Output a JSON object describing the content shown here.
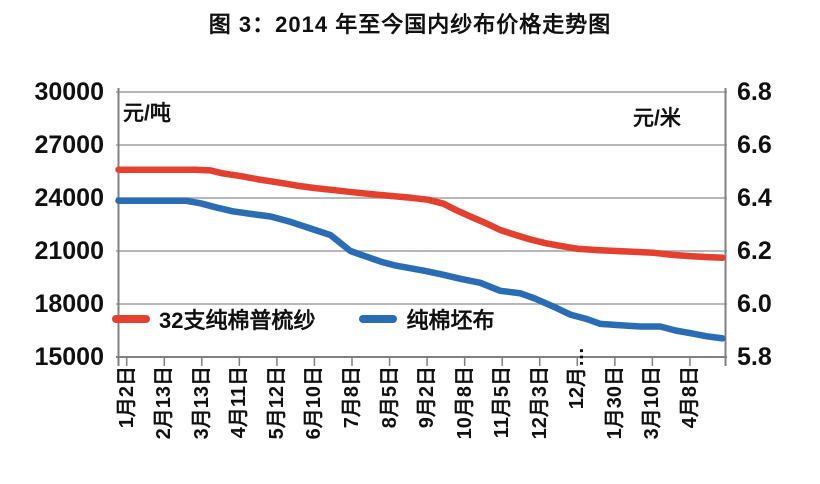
{
  "title": "图 3：2014 年至今国内纱布价格走势图",
  "colors": {
    "yarn_red": "#e4402f",
    "fabric_blue": "#2a6db4",
    "gridline": "#a0a0a0",
    "axis": "#808080",
    "text": "#111111",
    "background": "#ffffff"
  },
  "chart_data": {
    "type": "line",
    "title": "图 3：2014 年至今国内纱布价格走势图",
    "grid": true,
    "legend_position": "inside-bottom-left",
    "left_axis": {
      "unit": "元/吨",
      "min": 15000,
      "max": 30000,
      "step": 3000,
      "tick_labels": [
        "30000",
        "27000",
        "24000",
        "21000",
        "18000",
        "15000"
      ]
    },
    "right_axis": {
      "unit": "元/米",
      "min": 5.8,
      "max": 6.8,
      "step": 0.2,
      "tick_labels": [
        "6.8",
        "6.6",
        "6.4",
        "6.2",
        "6.0",
        "5.8"
      ]
    },
    "x_labels": [
      "1月2日",
      "2月13日",
      "3月13日",
      "4月11日",
      "5月12日",
      "6月10日",
      "7月8日",
      "8月5日",
      "9月2日",
      "10月8日",
      "11月5日",
      "12月3日",
      "12月…",
      "1月30日",
      "3月10日",
      "4月8日"
    ],
    "series": [
      {
        "name": "32支纯棉普梳纱",
        "axis": "left",
        "color": "#e4402f",
        "points": [
          [
            0.0,
            25600
          ],
          [
            0.127,
            25600
          ],
          [
            0.152,
            25560
          ],
          [
            0.172,
            25400
          ],
          [
            0.202,
            25240
          ],
          [
            0.232,
            25050
          ],
          [
            0.263,
            24890
          ],
          [
            0.295,
            24700
          ],
          [
            0.326,
            24560
          ],
          [
            0.358,
            24440
          ],
          [
            0.387,
            24330
          ],
          [
            0.419,
            24220
          ],
          [
            0.45,
            24120
          ],
          [
            0.482,
            24020
          ],
          [
            0.513,
            23900
          ],
          [
            0.538,
            23680
          ],
          [
            0.558,
            23330
          ],
          [
            0.583,
            22950
          ],
          [
            0.608,
            22580
          ],
          [
            0.632,
            22190
          ],
          [
            0.657,
            21910
          ],
          [
            0.682,
            21650
          ],
          [
            0.707,
            21440
          ],
          [
            0.732,
            21290
          ],
          [
            0.762,
            21120
          ],
          [
            0.793,
            21050
          ],
          [
            0.824,
            21000
          ],
          [
            0.856,
            20950
          ],
          [
            0.886,
            20900
          ],
          [
            0.917,
            20780
          ],
          [
            0.949,
            20700
          ],
          [
            0.98,
            20650
          ],
          [
            1.0,
            20620
          ]
        ]
      },
      {
        "name": "纯棉坯布",
        "axis": "right",
        "color": "#2a6db4",
        "points": [
          [
            0.0,
            6.39
          ],
          [
            0.111,
            6.39
          ],
          [
            0.136,
            6.38
          ],
          [
            0.161,
            6.365
          ],
          [
            0.189,
            6.35
          ],
          [
            0.219,
            6.34
          ],
          [
            0.252,
            6.33
          ],
          [
            0.285,
            6.31
          ],
          [
            0.318,
            6.285
          ],
          [
            0.351,
            6.26
          ],
          [
            0.384,
            6.2
          ],
          [
            0.409,
            6.18
          ],
          [
            0.434,
            6.16
          ],
          [
            0.459,
            6.145
          ],
          [
            0.483,
            6.135
          ],
          [
            0.508,
            6.125
          ],
          [
            0.538,
            6.11
          ],
          [
            0.566,
            6.095
          ],
          [
            0.599,
            6.08
          ],
          [
            0.632,
            6.05
          ],
          [
            0.666,
            6.04
          ],
          [
            0.69,
            6.02
          ],
          [
            0.72,
            5.99
          ],
          [
            0.748,
            5.96
          ],
          [
            0.773,
            5.945
          ],
          [
            0.798,
            5.925
          ],
          [
            0.831,
            5.92
          ],
          [
            0.864,
            5.915
          ],
          [
            0.897,
            5.915
          ],
          [
            0.922,
            5.9
          ],
          [
            0.947,
            5.89
          ],
          [
            0.974,
            5.878
          ],
          [
            1.0,
            5.87
          ]
        ]
      }
    ]
  }
}
